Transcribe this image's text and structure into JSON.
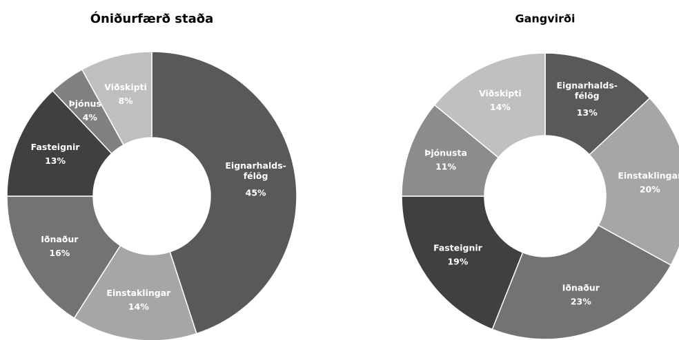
{
  "chart_data": [
    {
      "type": "donut",
      "title": "Óniðurfærð staða",
      "categories": [
        "Eignarhalds-félög",
        "Einstaklingar",
        "Iðnaður",
        "Fasteignir",
        "Þjónusta",
        "Viðskipti"
      ],
      "values": [
        45,
        14,
        16,
        13,
        4,
        8
      ],
      "value_labels": [
        "45%",
        "14%",
        "16%",
        "13%",
        "4%",
        "8%"
      ],
      "colors": [
        "#595959",
        "#a6a6a6",
        "#737373",
        "#404040",
        "#808080",
        "#bfbfbf"
      ]
    },
    {
      "type": "donut",
      "title": "Gangvirði",
      "categories": [
        "Eignarhalds-félög",
        "Einstaklingar",
        "Iðnaður",
        "Fasteignir",
        "Þjónusta",
        "Viðskipti"
      ],
      "values": [
        13,
        20,
        23,
        19,
        11,
        14
      ],
      "value_labels": [
        "13%",
        "20%",
        "23%",
        "19%",
        "11%",
        "14%"
      ],
      "colors": [
        "#595959",
        "#a6a6a6",
        "#737373",
        "#404040",
        "#8c8c8c",
        "#c0c0c0"
      ]
    }
  ]
}
